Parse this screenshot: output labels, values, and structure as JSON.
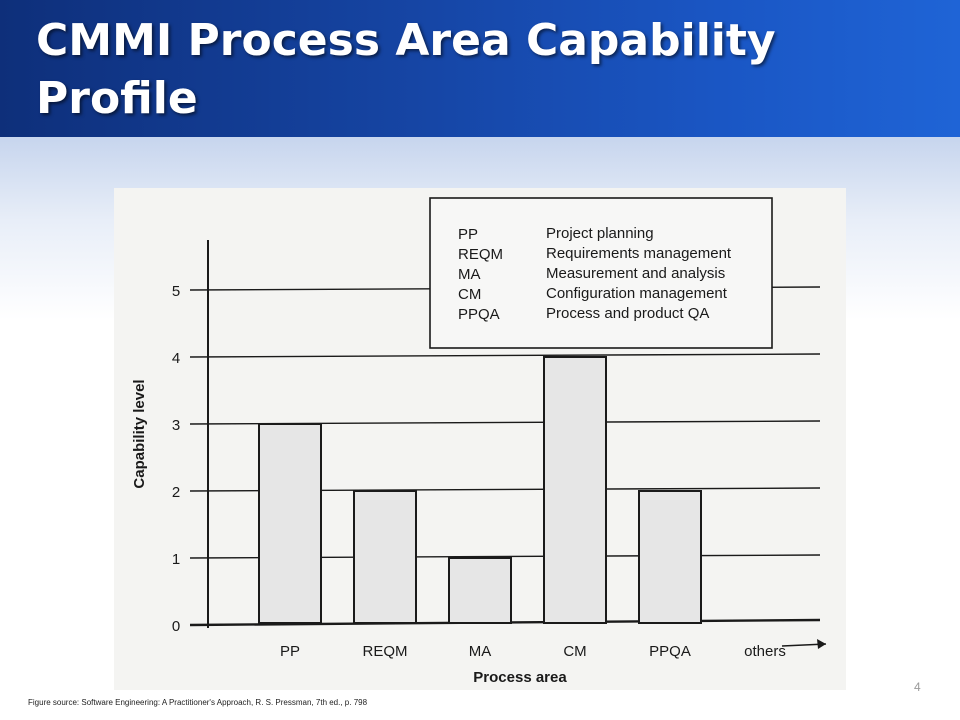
{
  "slide": {
    "title": "CMMI Process Area Capability Profile",
    "source": "Figure source: Software Engineering: A Practitioner's Approach, R. S. Pressman, 7th ed., p. 798",
    "page_number": "4"
  },
  "colors": {
    "title_bar": "#1646a6",
    "bar_fill": "#e6e6e6",
    "ink": "#1a1a1a"
  },
  "chart_data": {
    "type": "bar",
    "categories": [
      "PP",
      "REQM",
      "MA",
      "CM",
      "PPQA",
      "others"
    ],
    "values": [
      3,
      2,
      1,
      4,
      2,
      null
    ],
    "xlabel": "Process area",
    "ylabel": "Capability level",
    "ylim": [
      0,
      5
    ],
    "yticks": [
      "0",
      "1",
      "2",
      "3",
      "4",
      "5"
    ],
    "grid": true,
    "legend_position": "top-right",
    "legend": [
      {
        "abbr": "PP",
        "name": "Project planning"
      },
      {
        "abbr": "REQM",
        "name": "Requirements management"
      },
      {
        "abbr": "MA",
        "name": "Measurement and analysis"
      },
      {
        "abbr": "CM",
        "name": "Configuration management"
      },
      {
        "abbr": "PPQA",
        "name": "Process and product QA"
      }
    ]
  }
}
